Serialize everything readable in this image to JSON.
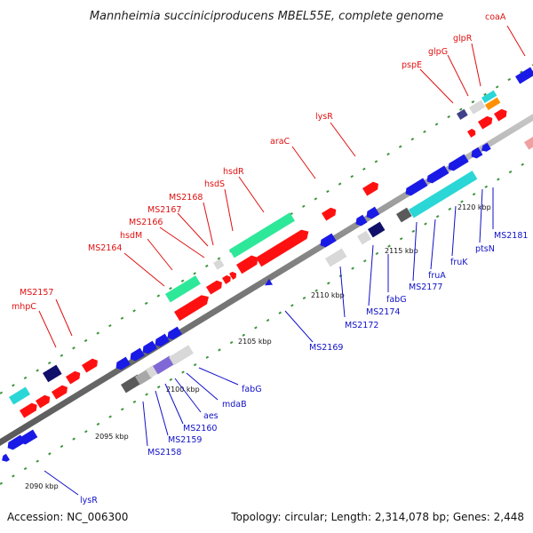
{
  "title": "Mannheimia succiniciproducens MBEL55E, complete genome",
  "footer": {
    "accession": "Accession: NC_006300",
    "summary": "Topology: circular; Length: 2,314,078 bp; Genes: 2,448"
  },
  "colors": {
    "forward_gene": "#ff1010",
    "reverse_gene": "#1a1ae6",
    "green": "#2ee89a",
    "cyan": "#2ad6d6",
    "navy": "#10106a",
    "grey": "#9a9a9a",
    "lightgrey": "#d8d8d8",
    "purple": "#7f68d6",
    "orange": "#ff9000",
    "backbone": "#8a8a8a"
  },
  "kbp_ticks": [
    "2090 kbp",
    "2095 kbp",
    "2100 kbp",
    "2105 kbp",
    "2110 kbp",
    "2115 kbp",
    "2120 kbp"
  ],
  "forward_labels": [
    "coaA",
    "glpR",
    "glpG",
    "pspE",
    "lysR",
    "araC",
    "hsdR",
    "hsdS",
    "MS2168",
    "MS2167",
    "MS2166",
    "hsdM",
    "MS2164",
    "MS2157",
    "mhpC"
  ],
  "reverse_labels": [
    "MS2181",
    "ptsN",
    "fruK",
    "fruA",
    "MS2177",
    "fabG",
    "MS2174",
    "MS2172",
    "MS2169",
    "fabG",
    "mdaB",
    "aes",
    "MS2160",
    "MS2159",
    "MS2158",
    "lysR"
  ]
}
